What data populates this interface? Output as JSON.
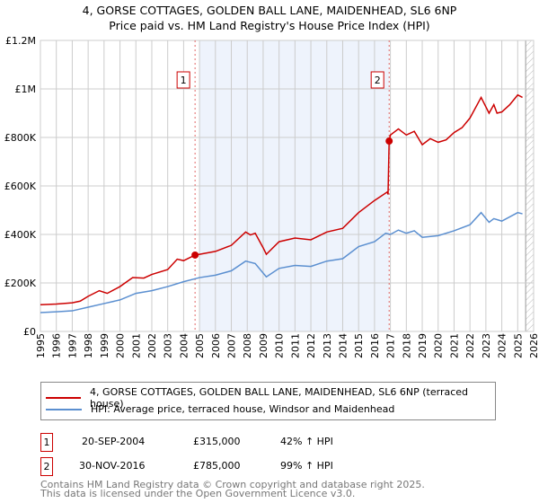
{
  "title": "4, GORSE COTTAGES, GOLDEN BALL LANE, MAIDENHEAD, SL6 6NP",
  "subtitle": "Price paid vs. HM Land Registry's House Price Index (HPI)",
  "colors": {
    "property": "#cc0000",
    "hpi": "#5b8fd0",
    "shade": "#eef3fc",
    "marker_line": "#e06666"
  },
  "chart_data": {
    "type": "line",
    "xlim": [
      1995,
      2026
    ],
    "ylim": [
      0,
      1200000
    ],
    "x_ticks": [
      "1995",
      "1996",
      "1997",
      "1998",
      "1999",
      "2000",
      "2001",
      "2002",
      "2003",
      "2004",
      "2005",
      "2006",
      "2007",
      "2008",
      "2009",
      "2010",
      "2011",
      "2012",
      "2013",
      "2014",
      "2015",
      "2016",
      "2017",
      "2018",
      "2019",
      "2020",
      "2021",
      "2022",
      "2023",
      "2024",
      "2025",
      "2026"
    ],
    "y_ticks": [
      {
        "v": 0,
        "label": "£0"
      },
      {
        "v": 200000,
        "label": "£200K"
      },
      {
        "v": 400000,
        "label": "£400K"
      },
      {
        "v": 600000,
        "label": "£600K"
      },
      {
        "v": 800000,
        "label": "£800K"
      },
      {
        "v": 1000000,
        "label": "£1M"
      },
      {
        "v": 1200000,
        "label": "£1.2M"
      }
    ],
    "shaded_range": [
      2005.0,
      2016.92
    ],
    "hatched_from": 2025.5,
    "series": [
      {
        "name": "4, GORSE COTTAGES, GOLDEN BALL LANE, MAIDENHEAD, SL6 6NP (terraced house)",
        "color": "#cc0000",
        "x": [
          1995,
          1996,
          1997,
          1997.5,
          1998,
          1998.7,
          1999.2,
          2000,
          2000.8,
          2001.5,
          2002,
          2003,
          2003.6,
          2004,
          2004.72,
          2005,
          2006,
          2007,
          2007.9,
          2008.2,
          2008.5,
          2009,
          2009.2,
          2010,
          2011,
          2012,
          2013,
          2014,
          2015,
          2016,
          2016.8,
          2016.85,
          2016.92,
          2017,
          2017.5,
          2018,
          2018.5,
          2019,
          2019.5,
          2020,
          2020.5,
          2021,
          2021.5,
          2022,
          2022.7,
          2023.2,
          2023.5,
          2023.7,
          2024,
          2024.5,
          2025,
          2025.3
        ],
        "y": [
          110000,
          113000,
          118000,
          125000,
          145000,
          168000,
          157000,
          185000,
          222000,
          220000,
          235000,
          255000,
          298000,
          292000,
          315000,
          318000,
          330000,
          355000,
          410000,
          398000,
          405000,
          345000,
          318000,
          370000,
          385000,
          378000,
          410000,
          425000,
          490000,
          540000,
          575000,
          565000,
          785000,
          810000,
          835000,
          810000,
          825000,
          770000,
          795000,
          780000,
          790000,
          820000,
          840000,
          880000,
          965000,
          900000,
          935000,
          900000,
          905000,
          935000,
          975000,
          965000
        ]
      },
      {
        "name": "HPI: Average price, terraced house, Windsor and Maidenhead",
        "color": "#5b8fd0",
        "x": [
          1995,
          1996,
          1997,
          1998,
          1999,
          2000,
          2001,
          2002,
          2003,
          2004,
          2005,
          2006,
          2007,
          2007.9,
          2008.5,
          2009.2,
          2010,
          2011,
          2012,
          2013,
          2014,
          2015,
          2016,
          2016.7,
          2017,
          2017.5,
          2018,
          2018.5,
          2019,
          2020,
          2021,
          2022,
          2022.7,
          2023.2,
          2023.5,
          2024,
          2025,
          2025.3
        ],
        "y": [
          78000,
          81000,
          85000,
          100000,
          115000,
          130000,
          157000,
          168000,
          185000,
          205000,
          222000,
          232000,
          250000,
          290000,
          280000,
          225000,
          260000,
          272000,
          268000,
          290000,
          300000,
          350000,
          370000,
          405000,
          400000,
          418000,
          405000,
          415000,
          388000,
          395000,
          415000,
          440000,
          490000,
          450000,
          465000,
          455000,
          490000,
          485000
        ]
      }
    ],
    "sales": [
      {
        "id": "1",
        "x": 2004.72,
        "y": 315000
      },
      {
        "id": "2",
        "x": 2016.92,
        "y": 785000
      }
    ]
  },
  "legend": {
    "property": "4, GORSE COTTAGES, GOLDEN BALL LANE, MAIDENHEAD, SL6 6NP (terraced house)",
    "hpi": "HPI: Average price, terraced house, Windsor and Maidenhead"
  },
  "transactions": [
    {
      "id": "1",
      "date": "20-SEP-2004",
      "price": "£315,000",
      "hpi": "42% ↑ HPI"
    },
    {
      "id": "2",
      "date": "30-NOV-2016",
      "price": "£785,000",
      "hpi": "99% ↑ HPI"
    }
  ],
  "footer": [
    "Contains HM Land Registry data © Crown copyright and database right 2025.",
    "This data is licensed under the Open Government Licence v3.0."
  ]
}
